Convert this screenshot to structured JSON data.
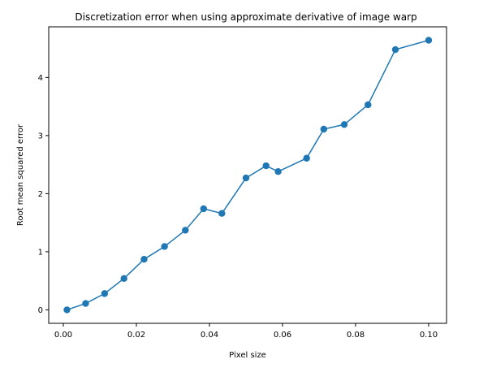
{
  "chart_data": {
    "type": "line",
    "title": "Discretization error when using approximate derivative of image warp",
    "xlabel": "Pixel size",
    "ylabel": "Root mean squared error",
    "xlim": [
      -0.004,
      0.1049
    ],
    "ylim": [
      -0.232,
      4.872
    ],
    "xticks": [
      0.0,
      0.02,
      0.04,
      0.06,
      0.08,
      0.1
    ],
    "xtick_labels": [
      "0.00",
      "0.02",
      "0.04",
      "0.06",
      "0.08",
      "0.10"
    ],
    "yticks": [
      0,
      1,
      2,
      3,
      4
    ],
    "ytick_labels": [
      "0",
      "1",
      "2",
      "3",
      "4"
    ],
    "grid": false,
    "series": [
      {
        "color": "#1f77b4",
        "marker": "circle",
        "x": [
          0.001,
          0.0061,
          0.0113,
          0.0166,
          0.0221,
          0.0277,
          0.0334,
          0.0384,
          0.0434,
          0.05,
          0.0555,
          0.0588,
          0.0666,
          0.0713,
          0.0769,
          0.0834,
          0.0909,
          0.1
        ],
        "y": [
          0.0,
          0.11,
          0.28,
          0.54,
          0.87,
          1.09,
          1.37,
          1.74,
          1.66,
          2.27,
          2.48,
          2.38,
          2.61,
          3.11,
          3.19,
          3.53,
          4.48,
          4.64
        ]
      }
    ]
  }
}
